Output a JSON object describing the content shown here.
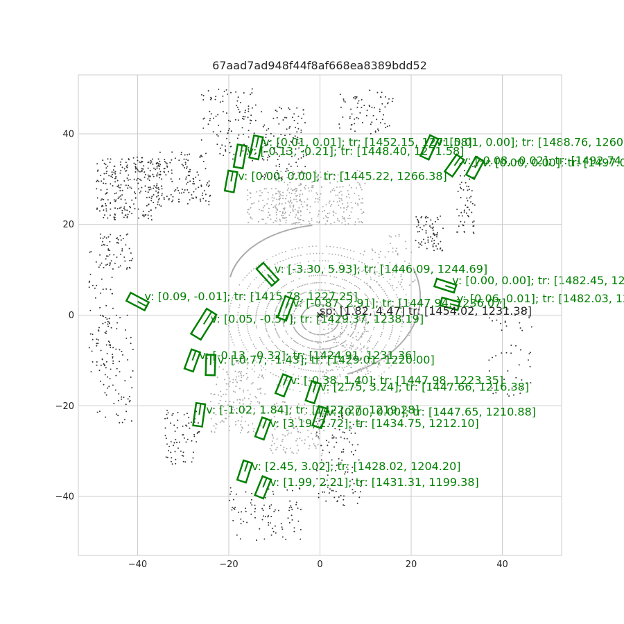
{
  "chart_data": {
    "type": "scatter",
    "title": "67aad7ad948f44f8af668ea8389bdd52",
    "xlabel": "",
    "ylabel": "",
    "xlim": [
      -53,
      53
    ],
    "ylim": [
      -53,
      53
    ],
    "xticks": [
      -40,
      -20,
      0,
      20,
      40
    ],
    "yticks": [
      -40,
      -20,
      0,
      20,
      40
    ],
    "grid": true,
    "ego": {
      "x": 0,
      "y": 0,
      "marker": "x",
      "label": "sp: [1.82, 4.47] tr: [1454.02, 1231.38]"
    },
    "boxes": [
      {
        "cx": 24.0,
        "cy": 37.0,
        "w": 2.0,
        "l": 5.0,
        "yaw_deg": 65,
        "label": "v: [0.01, 0.00]; tr: [1488.76, 1260"
      },
      {
        "cx": -14.0,
        "cy": 37.0,
        "w": 2.0,
        "l": 5.0,
        "yaw_deg": 78,
        "label": "v: [0.01, 0.01]; tr: [1452.15, 1271.58]"
      },
      {
        "cx": -17.5,
        "cy": 35.0,
        "w": 2.0,
        "l": 5.0,
        "yaw_deg": 80,
        "label": "v: [-0.13, -0.21]; tr: [1448.40, 1271.58]"
      },
      {
        "cx": 29.5,
        "cy": 33.0,
        "w": 2.0,
        "l": 4.5,
        "yaw_deg": 55,
        "label": "v: [-0.08, -0.02]; tr: [1492.74"
      },
      {
        "cx": 34.0,
        "cy": 32.5,
        "w": 2.0,
        "l": 4.5,
        "yaw_deg": 62,
        "label": "v: [0.00, 0.00]; tr: [1497.0"
      },
      {
        "cx": -19.5,
        "cy": 29.5,
        "w": 2.0,
        "l": 4.5,
        "yaw_deg": 80,
        "label": "v: [0.00, 0.00]; tr: [1445.22, 1266.38]"
      },
      {
        "cx": -11.5,
        "cy": 9.0,
        "w": 2.0,
        "l": 5.0,
        "yaw_deg": -48,
        "label": "v: [-3.30, 5.93]; tr: [1446.09, 1244.69]"
      },
      {
        "cx": 27.5,
        "cy": 6.5,
        "w": 1.8,
        "l": 4.5,
        "yaw_deg": -18,
        "label": "v: [0.00, 0.00]; tr: [1482.45, 1229"
      },
      {
        "cx": -40.0,
        "cy": 3.0,
        "w": 2.0,
        "l": 4.5,
        "yaw_deg": -28,
        "label": "v: [0.09, -0.01]; tr: [1415.78, 1227.25]"
      },
      {
        "cx": -7.5,
        "cy": 1.5,
        "w": 2.0,
        "l": 5.0,
        "yaw_deg": 70,
        "label": "v: [-0.87, 2.91]; tr: [1447.94, 1236.07]"
      },
      {
        "cx": 28.5,
        "cy": 2.5,
        "w": 1.8,
        "l": 4.0,
        "yaw_deg": -15,
        "label": "v: [0.06, 0.01]; tr: [1482.03, 12"
      },
      {
        "cx": -25.5,
        "cy": -2.0,
        "w": 2.5,
        "l": 6.5,
        "yaw_deg": 58,
        "label": "v: [0.05, -0.57]; tr: [1429.37, 1238.19]"
      },
      {
        "cx": -28.0,
        "cy": -10.0,
        "w": 2.0,
        "l": 4.5,
        "yaw_deg": 70,
        "label": "v: [-0.13, -0.32]; tr: [1424.91, 1231.36]"
      },
      {
        "cx": -24.0,
        "cy": -11.0,
        "w": 2.0,
        "l": 4.5,
        "yaw_deg": 88,
        "label": "v: [-0.77, -1.43]; tr: [1429.01, 1220.00]"
      },
      {
        "cx": -8.0,
        "cy": -15.5,
        "w": 2.0,
        "l": 4.5,
        "yaw_deg": 68,
        "label": "v: [-0.38, 1.40]; tr: [1447.98, 1223.35]"
      },
      {
        "cx": -1.5,
        "cy": -17.0,
        "w": 2.0,
        "l": 4.5,
        "yaw_deg": 72,
        "label": "v: [2.75, 3.24]; tr: [1447.66, 1216.38]"
      },
      {
        "cx": -26.5,
        "cy": -22.0,
        "w": 2.0,
        "l": 5.0,
        "yaw_deg": 82,
        "label": "v: [-1.02, 1.84]; tr: [1422.27, 1219.28]"
      },
      {
        "cx": 0.0,
        "cy": -22.5,
        "w": 2.0,
        "l": 4.5,
        "yaw_deg": 72,
        "label": "v: [0.00, 0.00]; tr: [1447.65, 1210.88]"
      },
      {
        "cx": -12.5,
        "cy": -25.0,
        "w": 2.0,
        "l": 4.5,
        "yaw_deg": 70,
        "label": "v: [3.19, 2.72]; tr: [1434.75, 1212.10]"
      },
      {
        "cx": -16.5,
        "cy": -34.5,
        "w": 2.0,
        "l": 4.5,
        "yaw_deg": 72,
        "label": "v: [2.45, 3.02]; tr: [1428.02, 1204.20]"
      },
      {
        "cx": -12.5,
        "cy": -38.0,
        "w": 2.0,
        "l": 4.5,
        "yaw_deg": 68,
        "label": "v: [1.99, 2.21]; tr: [1431.31, 1199.38]"
      }
    ]
  },
  "colors": {
    "box": "#008000",
    "points_far": "#333333",
    "points_near": "#aaaaaa",
    "grid": "#cccccc",
    "spine": "#cccccc"
  }
}
